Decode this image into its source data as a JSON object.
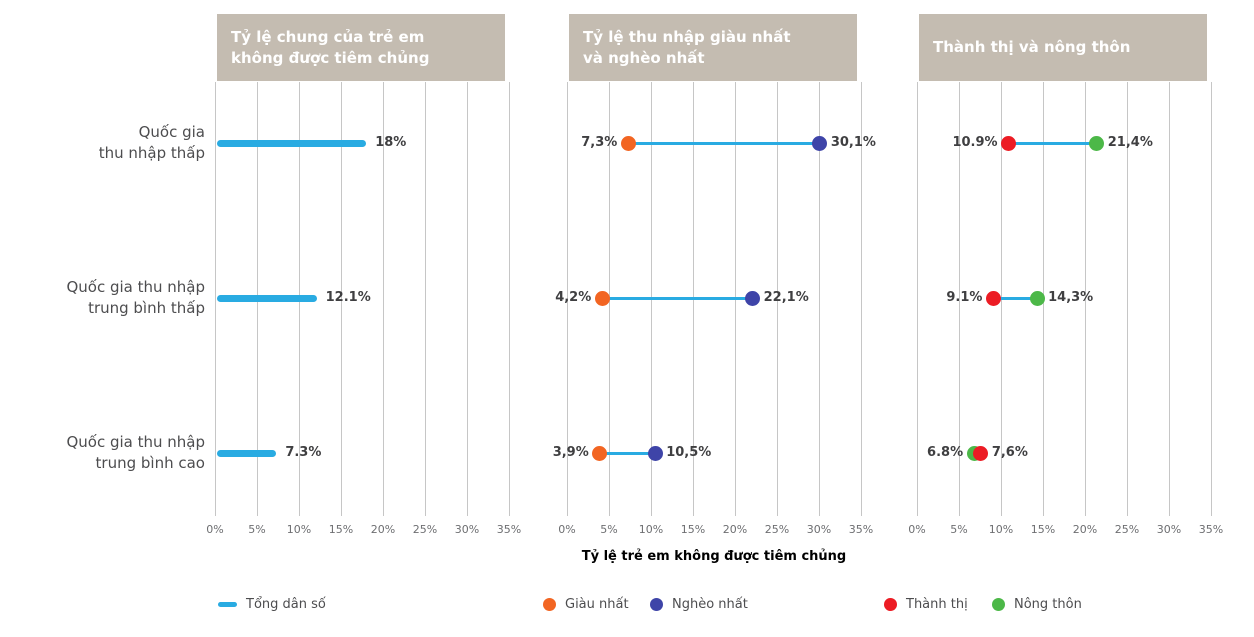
{
  "colors": {
    "cyan": "#29abe2",
    "orange": "#f26522",
    "blue": "#3e44a8",
    "red": "#ec1c24",
    "green": "#4cb848",
    "header_bg": "#c4bcb1",
    "header_text": "#ffffff",
    "grid": "#c6c6c6",
    "value_text": "#3f3f41",
    "tick_text": "#6d6e71",
    "row_label_text": "#4d4d4f"
  },
  "chart_data": {
    "type": "bar+dumbbell",
    "grid": "vertical-on",
    "legend_position": "bottom",
    "x_axis": {
      "min": 0,
      "max": 35,
      "ticks": [
        "0%",
        "5%",
        "10%",
        "15%",
        "20%",
        "25%",
        "30%",
        "35%"
      ],
      "tick_values": [
        0,
        5,
        10,
        15,
        20,
        25,
        30,
        35
      ],
      "label": "Tỷ lệ trẻ em không được tiêm chủng"
    },
    "row_labels": [
      {
        "line1": "Quốc gia",
        "line2": "thu nhập thấp"
      },
      {
        "line1": "Quốc gia thu nhập",
        "line2": "trung bình thấp"
      },
      {
        "line1": "Quốc gia thu nhập",
        "line2": "trung bình cao"
      }
    ],
    "panels": [
      {
        "title_line1": "Tỷ lệ chung của trẻ em",
        "title_line2": "không được tiêm chủng",
        "type": "bar",
        "series": "Tổng dân số",
        "color": "cyan",
        "rows": [
          {
            "value": 18,
            "label": "18%"
          },
          {
            "value": 12.1,
            "label": "12.1%"
          },
          {
            "value": 7.3,
            "label": "7.3%"
          }
        ]
      },
      {
        "title_line1": "Tỷ lệ thu nhập giàu nhất",
        "title_line2": "và nghèo nhất",
        "type": "dumbbell",
        "rows": [
          {
            "dots": [
              {
                "series": "Giàu nhất",
                "color": "orange",
                "value": 7.3,
                "label": "7,3%",
                "label_side": "left"
              },
              {
                "series": "Nghèo nhất",
                "color": "blue",
                "value": 30.1,
                "label": "30,1%",
                "label_side": "right"
              }
            ]
          },
          {
            "dots": [
              {
                "series": "Giàu nhất",
                "color": "orange",
                "value": 4.2,
                "label": "4,2%",
                "label_side": "left"
              },
              {
                "series": "Nghèo nhất",
                "color": "blue",
                "value": 22.1,
                "label": "22,1%",
                "label_side": "right"
              }
            ]
          },
          {
            "dots": [
              {
                "series": "Giàu nhất",
                "color": "orange",
                "value": 3.9,
                "label": "3,9%",
                "label_side": "left"
              },
              {
                "series": "Nghèo nhất",
                "color": "blue",
                "value": 10.5,
                "label": "10,5%",
                "label_side": "right"
              }
            ]
          }
        ]
      },
      {
        "title_line1": "Thành thị và nông thôn",
        "title_line2": "",
        "type": "dumbbell",
        "rows": [
          {
            "dots": [
              {
                "series": "Thành thị",
                "color": "red",
                "value": 10.9,
                "label": "10.9%",
                "label_side": "left"
              },
              {
                "series": "Nông thôn",
                "color": "green",
                "value": 21.4,
                "label": "21,4%",
                "label_side": "right"
              }
            ]
          },
          {
            "dots": [
              {
                "series": "Thành thị",
                "color": "red",
                "value": 9.1,
                "label": "9.1%",
                "label_side": "left"
              },
              {
                "series": "Nông thôn",
                "color": "green",
                "value": 14.3,
                "label": "14,3%",
                "label_side": "right"
              }
            ]
          },
          {
            "dots": [
              {
                "series": "Nông thôn",
                "color": "green",
                "value": 6.8,
                "label": "6.8%",
                "label_side": "left"
              },
              {
                "series": "Thành thị",
                "color": "red",
                "value": 7.6,
                "label": "7,6%",
                "label_side": "right"
              }
            ]
          }
        ]
      }
    ],
    "legend": [
      {
        "label": "Tổng dân số",
        "swatch": "line",
        "color": "cyan"
      },
      {
        "label": "Giàu nhất",
        "swatch": "dot",
        "color": "orange"
      },
      {
        "label": "Nghèo nhất",
        "swatch": "dot",
        "color": "blue"
      },
      {
        "label": "Thành thị",
        "swatch": "dot",
        "color": "red"
      },
      {
        "label": "Nông thôn",
        "swatch": "dot",
        "color": "green"
      }
    ]
  }
}
